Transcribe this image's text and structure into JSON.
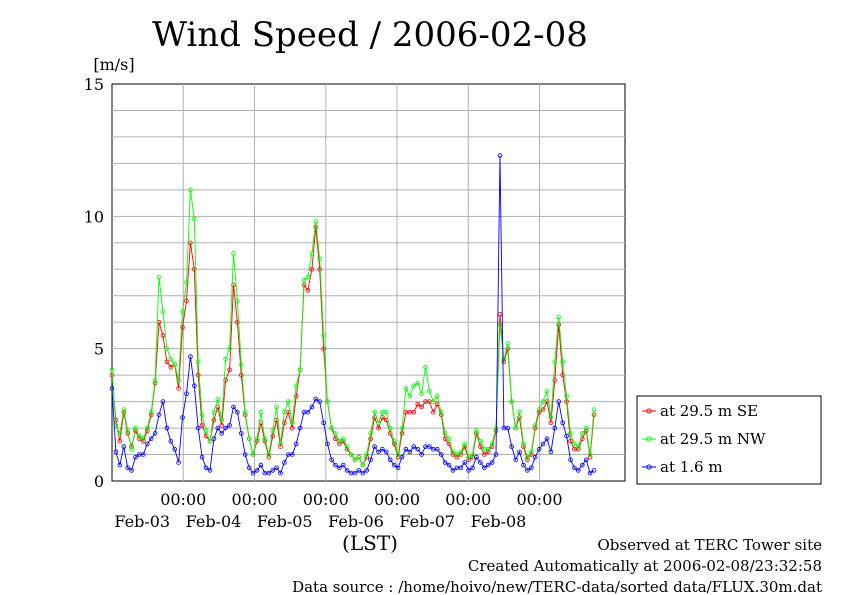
{
  "chart_data": {
    "type": "line",
    "title": "Wind Speed / 2006-02-08",
    "ylabel": "[m/s]",
    "xlabel": "(LST)",
    "ylim": [
      0,
      15
    ],
    "y_ticks": [
      0,
      5,
      10,
      15
    ],
    "y_tick_labels": [
      "0",
      "5",
      "10",
      "15"
    ],
    "xlim": [
      0,
      144
    ],
    "x_ticks": [
      {
        "x": 20,
        "time": "00:00",
        "date": "Feb-03"
      },
      {
        "x": 40,
        "time": "00:00",
        "date": "Feb-04"
      },
      {
        "x": 60,
        "time": "00:00",
        "date": "Feb-05"
      },
      {
        "x": 80,
        "time": "00:00",
        "date": "Feb-06"
      },
      {
        "x": 100,
        "time": "00:00",
        "date": "Feb-07"
      },
      {
        "x": 120,
        "time": "00:00",
        "date": "Feb-08"
      }
    ],
    "grid": true,
    "legend_position": "right",
    "series": [
      {
        "name": "at 29.5 m SE",
        "color": "#ff0000",
        "values": [
          4.0,
          2.3,
          1.5,
          2.6,
          1.8,
          1.3,
          1.9,
          1.6,
          1.5,
          1.9,
          2.5,
          3.7,
          6.0,
          5.5,
          4.5,
          4.3,
          4.4,
          3.5,
          5.8,
          6.8,
          9.0,
          8.0,
          4.0,
          2.1,
          1.7,
          1.5,
          2.3,
          2.8,
          2.1,
          3.8,
          4.2,
          7.4,
          6.0,
          4.0,
          2.5,
          1.6,
          1.0,
          1.5,
          2.2,
          1.5,
          0.9,
          1.7,
          2.3,
          1.3,
          2.2,
          2.6,
          2.0,
          3.2,
          4.2,
          7.4,
          7.2,
          8.0,
          9.6,
          8.0,
          5.0,
          3.0,
          2.0,
          1.6,
          1.4,
          1.5,
          1.2,
          1.0,
          0.8,
          0.9,
          0.6,
          0.9,
          1.6,
          2.4,
          2.0,
          2.4,
          2.3,
          1.8,
          1.4,
          0.9,
          1.8,
          2.6,
          2.6,
          2.6,
          2.9,
          2.8,
          3.0,
          3.0,
          2.6,
          2.9,
          2.5,
          1.6,
          1.4,
          1.0,
          0.9,
          1.0,
          1.3,
          0.8,
          0.9,
          1.8,
          1.3,
          1.0,
          1.1,
          1.3,
          1.9,
          6.3,
          4.5,
          5.0,
          3.0,
          2.0,
          2.4,
          1.3,
          0.8,
          1.0,
          2.0,
          2.6,
          2.7,
          3.0,
          2.2,
          3.8,
          5.9,
          4.0,
          3.0,
          1.5,
          1.2,
          1.2,
          1.6,
          1.9,
          0.9,
          2.5
        ],
        "x_step": 1.1
      },
      {
        "name": "at 29.5 m NW",
        "color": "#00ff00",
        "values": [
          4.2,
          2.1,
          1.8,
          2.7,
          1.9,
          1.2,
          2.0,
          1.7,
          1.6,
          2.0,
          2.6,
          3.8,
          7.7,
          6.4,
          5.0,
          4.6,
          4.4,
          3.8,
          6.4,
          7.5,
          11.0,
          9.9,
          4.5,
          2.5,
          1.9,
          1.5,
          2.6,
          3.1,
          2.3,
          4.6,
          5.0,
          8.6,
          6.8,
          4.4,
          2.6,
          1.6,
          1.0,
          1.6,
          2.6,
          1.6,
          1.0,
          1.9,
          2.8,
          1.4,
          2.6,
          3.0,
          2.2,
          3.6,
          4.2,
          7.6,
          7.7,
          8.6,
          9.8,
          8.4,
          5.5,
          3.0,
          2.0,
          1.8,
          1.5,
          1.6,
          1.3,
          1.0,
          0.8,
          0.9,
          0.6,
          1.0,
          1.8,
          2.6,
          2.2,
          2.6,
          2.6,
          2.0,
          1.5,
          1.0,
          2.0,
          3.5,
          3.2,
          3.6,
          3.7,
          3.3,
          4.3,
          3.4,
          3.0,
          3.2,
          2.6,
          1.8,
          1.6,
          1.1,
          1.0,
          1.1,
          1.4,
          0.9,
          1.0,
          1.9,
          1.5,
          1.2,
          1.2,
          1.4,
          2.0,
          5.9,
          4.6,
          5.2,
          3.0,
          2.0,
          2.6,
          1.4,
          0.9,
          1.1,
          2.1,
          2.7,
          3.0,
          3.4,
          2.4,
          4.5,
          6.2,
          4.5,
          3.2,
          1.8,
          1.4,
          1.3,
          1.8,
          2.0,
          1.0,
          2.7
        ],
        "x_step": 1.1
      },
      {
        "name": "at 1.6 m",
        "color": "#0000ff",
        "values": [
          3.5,
          1.1,
          0.6,
          1.3,
          0.5,
          0.4,
          0.9,
          1.0,
          1.0,
          1.4,
          1.6,
          1.8,
          2.5,
          3.0,
          2.0,
          1.5,
          1.2,
          0.7,
          2.4,
          3.3,
          4.7,
          3.6,
          2.0,
          0.9,
          0.5,
          0.4,
          1.6,
          2.0,
          1.8,
          2.0,
          2.1,
          2.8,
          2.6,
          1.8,
          1.0,
          0.5,
          0.3,
          0.4,
          0.6,
          0.3,
          0.3,
          0.4,
          0.5,
          0.3,
          0.7,
          1.0,
          1.0,
          1.4,
          2.0,
          2.6,
          2.6,
          2.8,
          3.1,
          3.0,
          2.2,
          1.4,
          0.8,
          0.6,
          0.5,
          0.6,
          0.4,
          0.3,
          0.3,
          0.4,
          0.3,
          0.4,
          0.8,
          1.3,
          1.1,
          1.2,
          1.1,
          0.8,
          0.6,
          0.5,
          0.9,
          1.2,
          1.1,
          1.3,
          1.2,
          1.0,
          1.3,
          1.3,
          1.2,
          1.2,
          1.0,
          0.7,
          0.6,
          0.4,
          0.5,
          0.5,
          0.7,
          0.4,
          0.5,
          0.9,
          0.7,
          0.5,
          0.6,
          0.7,
          1.0,
          12.3,
          2.0,
          2.0,
          1.3,
          0.8,
          1.1,
          0.6,
          0.4,
          0.5,
          0.9,
          1.2,
          1.4,
          1.6,
          1.1,
          2.0,
          3.0,
          2.2,
          1.7,
          0.8,
          0.5,
          0.4,
          0.6,
          0.8,
          0.3,
          0.4
        ],
        "x_step": 1.1
      }
    ]
  },
  "footer": {
    "line1": "Observed at TERC Tower site",
    "line2": "Created Automatically at 2006-02-08/23:32:58",
    "line3": "Data source : /home/hoivo/new/TERC-data/sorted  data/FLUX.30m.dat"
  }
}
